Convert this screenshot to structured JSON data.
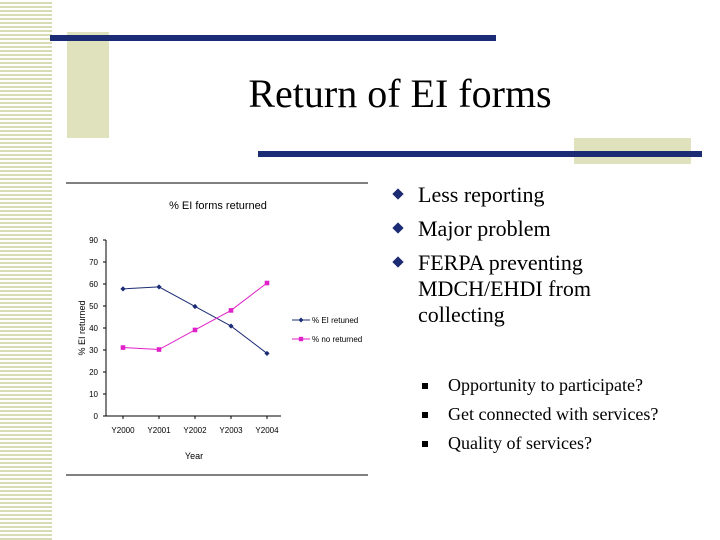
{
  "slide": {
    "title": "Return of EI forms"
  },
  "bullets": [
    {
      "text": "Less reporting"
    },
    {
      "text": "Major problem"
    },
    {
      "text": "FERPA preventing\nMDCH/EHDI from\ncollecting"
    }
  ],
  "sub_bullets": [
    {
      "text": "Opportunity to participate?"
    },
    {
      "text": "Get connected with services?"
    },
    {
      "text": "Quality of services?"
    }
  ],
  "colors": {
    "navy": "#1c2c74",
    "olive": "#dfe2bd",
    "series_returned": "#1c2c74",
    "series_not_returned": "#e020c8"
  },
  "chart_data": {
    "type": "line",
    "title": "% EI forms returned",
    "xlabel": "Year",
    "ylabel": "% EI returned",
    "categories": [
      "Y2000",
      "Y2001",
      "Y2002",
      "Y2003",
      "Y2004"
    ],
    "ylim": [
      0,
      90
    ],
    "yticks": [
      "90",
      "70",
      "60",
      "50",
      "40",
      "30",
      "20",
      "10",
      "0"
    ],
    "ytick_values": [
      90,
      70,
      60,
      50,
      40,
      30,
      20,
      10,
      0
    ],
    "grid": false,
    "legend_position": "right",
    "series": [
      {
        "name": "% EI retuned",
        "values": [
          65,
          66,
          56,
          46,
          32
        ],
        "color": "#1c2c74",
        "marker": "diamond"
      },
      {
        "name": "% no returned",
        "values": [
          35,
          34,
          44,
          54,
          68
        ],
        "color": "#e020c8",
        "marker": "square"
      }
    ]
  }
}
